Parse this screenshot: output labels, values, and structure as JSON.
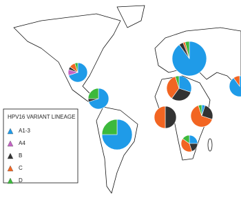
{
  "legend": {
    "title": "HPV16 VARIANT LINEAGE",
    "items": [
      {
        "label": "A1-3",
        "color": "#1f9be8"
      },
      {
        "label": "A4",
        "color": "#c464c4"
      },
      {
        "label": "B",
        "color": "#333333"
      },
      {
        "label": "C",
        "color": "#f26522"
      },
      {
        "label": "D",
        "color": "#3cb93c"
      }
    ]
  },
  "pies": [
    {
      "values": [
        70,
        10,
        5,
        10,
        5
      ]
    },
    {
      "values": [
        70,
        0,
        5,
        0,
        25
      ]
    },
    {
      "values": [
        75,
        0,
        0,
        0,
        25
      ]
    },
    {
      "values": [
        90,
        0,
        4,
        2,
        4
      ]
    },
    {
      "values": [
        30,
        0,
        30,
        35,
        5
      ]
    },
    {
      "values": [
        0,
        0,
        50,
        50,
        0
      ]
    },
    {
      "values": [
        5,
        0,
        25,
        65,
        5
      ]
    },
    {
      "values": [
        25,
        0,
        20,
        40,
        15
      ]
    },
    {
      "values": [
        90,
        0,
        0,
        10,
        0
      ]
    }
  ]
}
